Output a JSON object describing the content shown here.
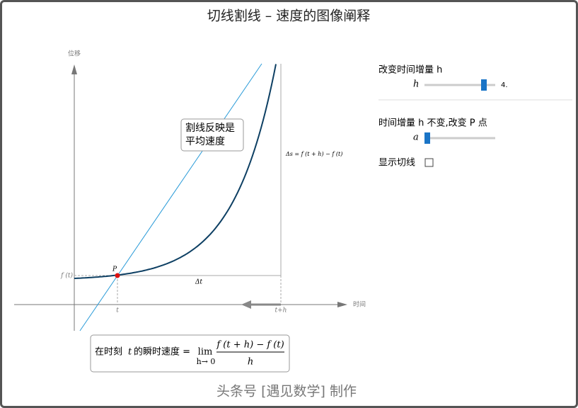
{
  "header": {
    "title": "切线割线 – 速度的图像阐释"
  },
  "plot": {
    "y_axis_label": "位移",
    "x_axis_label": "时间",
    "point": "P",
    "f_t": "f (t)",
    "t": "t",
    "t_h": "t+h",
    "delta_t": "Δt",
    "delta_s": "Δs = f (t + h) − f (t)",
    "annotation": [
      "割线反映是",
      "平均速度"
    ]
  },
  "formula": {
    "prefix": "在时刻",
    "var": "t",
    "suffix": "的瞬时速度 =",
    "lim": "lim",
    "lim_sub": "h→ 0",
    "numerator": "f (t + h) − f (t)",
    "denominator": "h"
  },
  "controls": [
    {
      "label": "改变时间增量 h",
      "slider_label": "h",
      "value": "4."
    },
    {
      "label": "时间增量 h 不变,改变 P 点",
      "slider_label": "a"
    },
    {
      "label": "显示切线"
    }
  ],
  "footer": "头条号 [遇见数学] 制作"
}
